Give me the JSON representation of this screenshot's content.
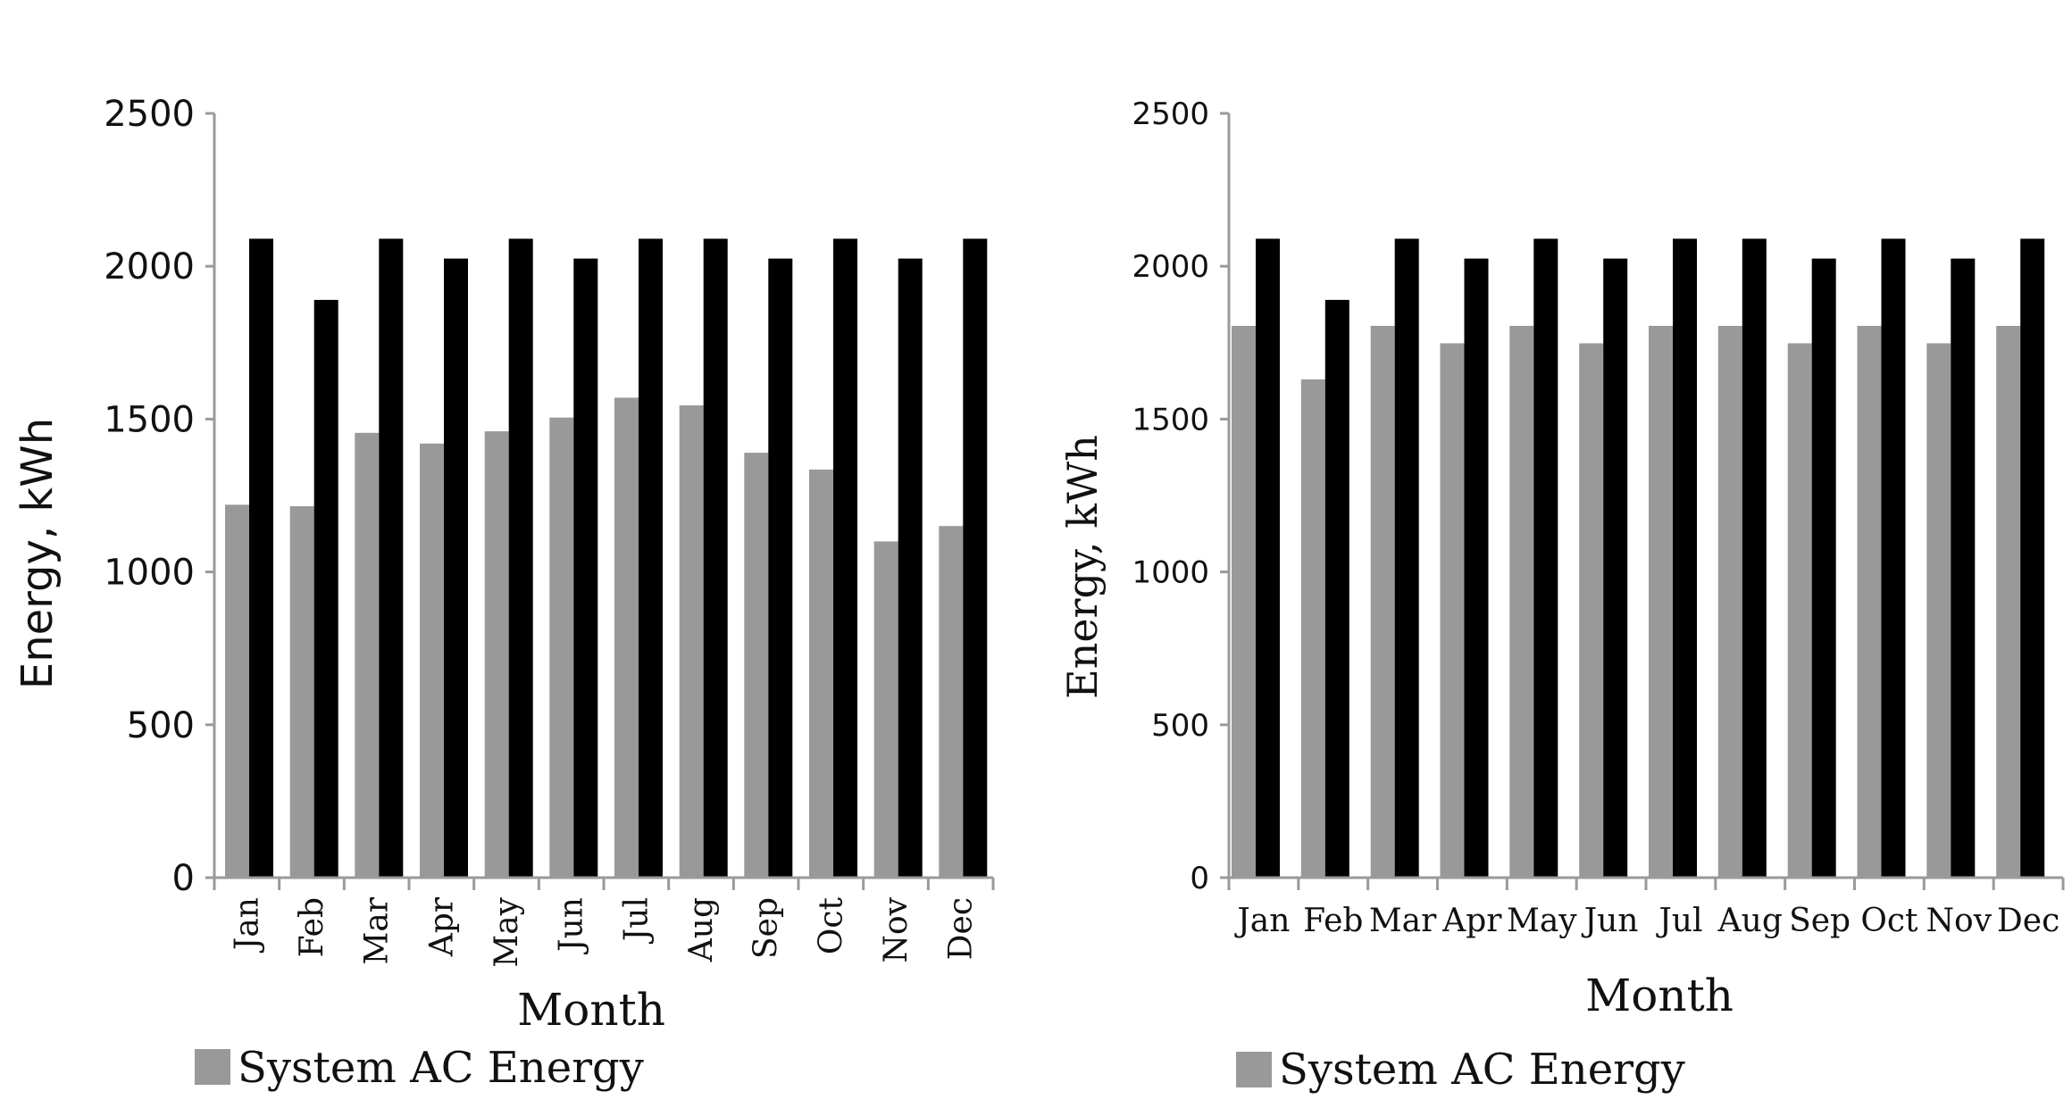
{
  "colors": {
    "series_gray": "#999999",
    "series_black": "#000000",
    "axis": "#9a9a9a",
    "text": "#111111"
  },
  "chart_data": [
    {
      "type": "bar",
      "categories": [
        "Jan",
        "Feb",
        "Mar",
        "Apr",
        "May",
        "Jun",
        "Jul",
        "Aug",
        "Sep",
        "Oct",
        "Nov",
        "Dec"
      ],
      "category_label_orientation": "vertical",
      "series": [
        {
          "name": "System AC Energy",
          "color": "#999999",
          "values": [
            1220,
            1215,
            1455,
            1420,
            1460,
            1505,
            1570,
            1545,
            1390,
            1335,
            1100,
            1150
          ]
        },
        {
          "color": "#000000",
          "values": [
            2090,
            1890,
            2090,
            2025,
            2090,
            2025,
            2090,
            2090,
            2025,
            2090,
            2025,
            2090
          ]
        }
      ],
      "xlabel": "Month",
      "ylabel": "Energy, kWh",
      "ylim": [
        0,
        2500
      ],
      "yticks": [
        0,
        500,
        1000,
        1500,
        2000,
        2500
      ],
      "grid": false,
      "legend": {
        "placement": "bottom-left",
        "label": "System AC Energy"
      }
    },
    {
      "type": "bar",
      "categories": [
        "Jan",
        "Feb",
        "Mar",
        "Apr",
        "May",
        "Jun",
        "Jul",
        "Aug",
        "Sep",
        "Oct",
        "Nov",
        "Dec"
      ],
      "category_label_orientation": "horizontal",
      "series": [
        {
          "name": "System AC Energy",
          "color": "#999999",
          "values": [
            1805,
            1630,
            1805,
            1748,
            1805,
            1748,
            1805,
            1805,
            1748,
            1805,
            1748,
            1805
          ]
        },
        {
          "color": "#000000",
          "values": [
            2090,
            1890,
            2090,
            2025,
            2090,
            2025,
            2090,
            2090,
            2025,
            2090,
            2025,
            2090
          ]
        }
      ],
      "xlabel": "Month",
      "ylabel": "Energy, kWh",
      "ylim": [
        0,
        2500
      ],
      "yticks": [
        0,
        500,
        1000,
        1500,
        2000,
        2500
      ],
      "grid": false,
      "legend": {
        "placement": "bottom-left",
        "label": "System AC Energy"
      }
    }
  ]
}
